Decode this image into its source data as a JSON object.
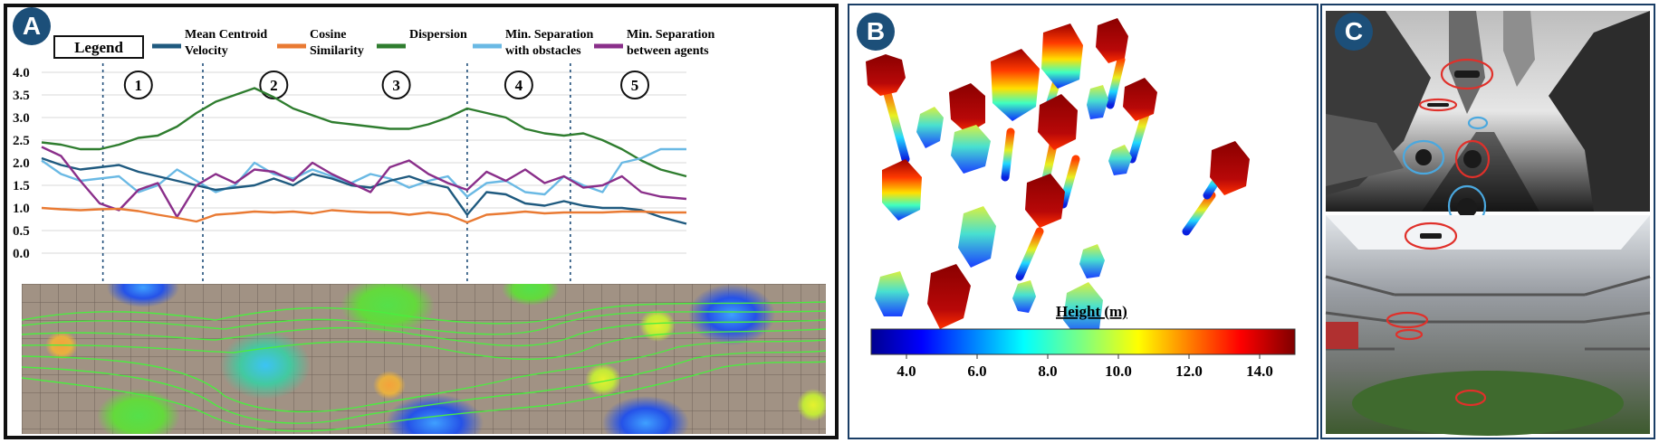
{
  "panels": {
    "a": {
      "badge": "A"
    },
    "b": {
      "badge": "B"
    },
    "c": {
      "badge": "C"
    }
  },
  "legend": {
    "title": "Legend",
    "entries": [
      {
        "name": "Mean Centroid Velocity",
        "lines": [
          "Mean Centroid",
          "Velocity"
        ],
        "color": "#1f5a7f"
      },
      {
        "name": "Cosine Similarity",
        "lines": [
          "Cosine",
          "Similarity"
        ],
        "color": "#e97a33"
      },
      {
        "name": "Dispersion",
        "lines": [
          "Dispersion"
        ],
        "color": "#2f7d2f"
      },
      {
        "name": "Min. Separation with obstacles",
        "lines": [
          "Min. Separation",
          "with obstacles"
        ],
        "color": "#6ab9e4"
      },
      {
        "name": "Min. Separation between agents",
        "lines": [
          "Min. Separation",
          "between agents"
        ],
        "color": "#8a2f8a"
      }
    ]
  },
  "chart_data": {
    "type": "line",
    "title": "",
    "xlabel": "",
    "ylabel": "",
    "ylim": [
      0,
      4
    ],
    "y_ticks": [
      "4.0",
      "3.5",
      "3.0",
      "2.5",
      "2.0",
      "1.5",
      "1.0",
      "0.5",
      "0.0"
    ],
    "x_range": [
      0,
      100
    ],
    "phase_boundaries": [
      9.5,
      25,
      66,
      82
    ],
    "phase_labels": [
      "1",
      "2",
      "3",
      "4",
      "5"
    ],
    "phase_label_positions": [
      15,
      36,
      55,
      74,
      92
    ],
    "series": [
      {
        "name": "Dispersion",
        "color": "#2f7d2f",
        "x": [
          0,
          3,
          6,
          9,
          12,
          15,
          18,
          21,
          24,
          27,
          30,
          33,
          36,
          39,
          42,
          45,
          48,
          51,
          54,
          57,
          60,
          63,
          66,
          69,
          72,
          75,
          78,
          81,
          84,
          87,
          90,
          93,
          96,
          100
        ],
        "y": [
          2.45,
          2.4,
          2.3,
          2.3,
          2.4,
          2.55,
          2.6,
          2.8,
          3.1,
          3.35,
          3.5,
          3.65,
          3.45,
          3.2,
          3.05,
          2.9,
          2.85,
          2.8,
          2.75,
          2.75,
          2.85,
          3.0,
          3.2,
          3.1,
          3.0,
          2.75,
          2.65,
          2.6,
          2.65,
          2.5,
          2.3,
          2.05,
          1.85,
          1.7
        ]
      },
      {
        "name": "Min. Separation with obstacles",
        "color": "#6ab9e4",
        "x": [
          0,
          3,
          6,
          9,
          12,
          15,
          18,
          21,
          24,
          27,
          30,
          33,
          36,
          39,
          42,
          45,
          48,
          51,
          54,
          57,
          60,
          63,
          66,
          69,
          72,
          75,
          78,
          81,
          84,
          87,
          90,
          93,
          96,
          100
        ],
        "y": [
          2.05,
          1.75,
          1.6,
          1.65,
          1.7,
          1.35,
          1.5,
          1.85,
          1.6,
          1.35,
          1.5,
          2.0,
          1.75,
          1.65,
          1.85,
          1.7,
          1.55,
          1.75,
          1.65,
          1.45,
          1.6,
          1.7,
          1.25,
          1.55,
          1.6,
          1.35,
          1.3,
          1.7,
          1.5,
          1.35,
          2.0,
          2.1,
          2.3,
          2.3
        ]
      },
      {
        "name": "Mean Centroid Velocity",
        "color": "#1f5a7f",
        "x": [
          0,
          3,
          6,
          9,
          12,
          15,
          18,
          21,
          24,
          27,
          30,
          33,
          36,
          39,
          42,
          45,
          48,
          51,
          54,
          57,
          60,
          63,
          66,
          69,
          72,
          75,
          78,
          81,
          84,
          87,
          90,
          93,
          96,
          100
        ],
        "y": [
          2.1,
          1.95,
          1.85,
          1.9,
          1.95,
          1.8,
          1.7,
          1.6,
          1.5,
          1.4,
          1.45,
          1.5,
          1.65,
          1.5,
          1.75,
          1.65,
          1.5,
          1.45,
          1.6,
          1.7,
          1.55,
          1.45,
          0.85,
          1.35,
          1.3,
          1.1,
          1.05,
          1.15,
          1.05,
          1.0,
          1.0,
          0.95,
          0.8,
          0.65
        ]
      },
      {
        "name": "Min. Separation between agents",
        "color": "#8a2f8a",
        "x": [
          0,
          3,
          6,
          9,
          12,
          15,
          18,
          21,
          24,
          27,
          30,
          33,
          36,
          39,
          42,
          45,
          48,
          51,
          54,
          57,
          60,
          63,
          66,
          69,
          72,
          75,
          78,
          81,
          84,
          87,
          90,
          93,
          96,
          100
        ],
        "y": [
          2.35,
          2.15,
          1.6,
          1.1,
          0.95,
          1.4,
          1.55,
          0.8,
          1.5,
          1.75,
          1.55,
          1.85,
          1.8,
          1.6,
          2.0,
          1.75,
          1.55,
          1.35,
          1.9,
          2.05,
          1.75,
          1.55,
          1.4,
          1.8,
          1.6,
          1.85,
          1.55,
          1.7,
          1.45,
          1.5,
          1.7,
          1.35,
          1.25,
          1.2
        ]
      },
      {
        "name": "Cosine Similarity",
        "color": "#e97a33",
        "x": [
          0,
          3,
          6,
          9,
          12,
          15,
          18,
          21,
          24,
          27,
          30,
          33,
          36,
          39,
          42,
          45,
          48,
          51,
          54,
          57,
          60,
          63,
          66,
          69,
          72,
          75,
          78,
          81,
          84,
          87,
          90,
          93,
          96,
          100
        ],
        "y": [
          1.0,
          0.97,
          0.95,
          0.97,
          0.98,
          0.93,
          0.85,
          0.78,
          0.7,
          0.85,
          0.88,
          0.92,
          0.9,
          0.92,
          0.88,
          0.95,
          0.92,
          0.9,
          0.9,
          0.85,
          0.9,
          0.85,
          0.68,
          0.85,
          0.88,
          0.92,
          0.88,
          0.9,
          0.9,
          0.9,
          0.92,
          0.92,
          0.9,
          0.9
        ]
      }
    ]
  },
  "colorbar": {
    "title": "Height (m)",
    "ticks": [
      "4.0",
      "6.0",
      "8.0",
      "10.0",
      "12.0",
      "14.0"
    ],
    "min": 3.0,
    "max": 15.0,
    "tick_values": [
      4,
      6,
      8,
      10,
      12,
      14
    ]
  },
  "colors": {
    "badge": "#1c4f79",
    "map_bg": "#a19284",
    "trajectory": "#49f03e",
    "drone_obstacle_circle": "#4aa8df",
    "drone_agent_circle": "#e0302a"
  }
}
